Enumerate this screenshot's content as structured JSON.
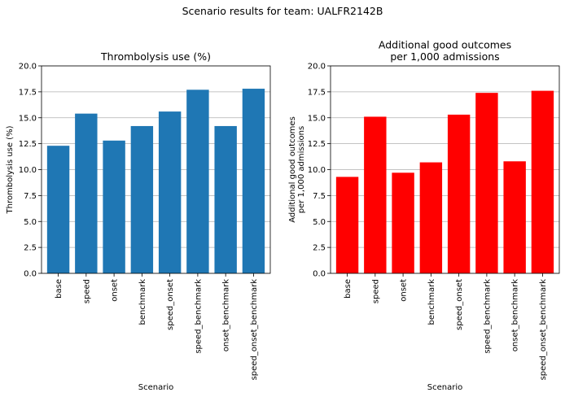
{
  "suptitle": "Scenario results for team: UALFR2142B",
  "chart_data": [
    {
      "type": "bar",
      "title": [
        "Thrombolysis use (%)"
      ],
      "xlabel": "Scenario",
      "ylabel": [
        "Thrombolysis use (%)"
      ],
      "categories": [
        "base",
        "speed",
        "onset",
        "benchmark",
        "speed_onset",
        "speed_benchmark",
        "onset_benchmark",
        "speed_onset_benchmark"
      ],
      "values": [
        12.3,
        15.4,
        12.8,
        14.2,
        15.6,
        17.7,
        14.2,
        17.8
      ],
      "ylim": [
        0,
        20
      ],
      "yticks": [
        "0.0",
        "2.5",
        "5.0",
        "7.5",
        "10.0",
        "12.5",
        "15.0",
        "17.5",
        "20.0"
      ],
      "grid": "y",
      "color": "#1f77b4"
    },
    {
      "type": "bar",
      "title": [
        "Additional good outcomes",
        "per 1,000 admissions"
      ],
      "xlabel": "Scenario",
      "ylabel": [
        "Additional good outcomes",
        "per 1,000 admissions"
      ],
      "categories": [
        "base",
        "speed",
        "onset",
        "benchmark",
        "speed_onset",
        "speed_benchmark",
        "onset_benchmark",
        "speed_onset_benchmark"
      ],
      "values": [
        9.3,
        15.1,
        9.7,
        10.7,
        15.3,
        17.4,
        10.8,
        17.6
      ],
      "ylim": [
        0,
        20
      ],
      "yticks": [
        "0.0",
        "2.5",
        "5.0",
        "7.5",
        "10.0",
        "12.5",
        "15.0",
        "17.5",
        "20.0"
      ],
      "grid": "y",
      "color": "#ff0000"
    }
  ]
}
